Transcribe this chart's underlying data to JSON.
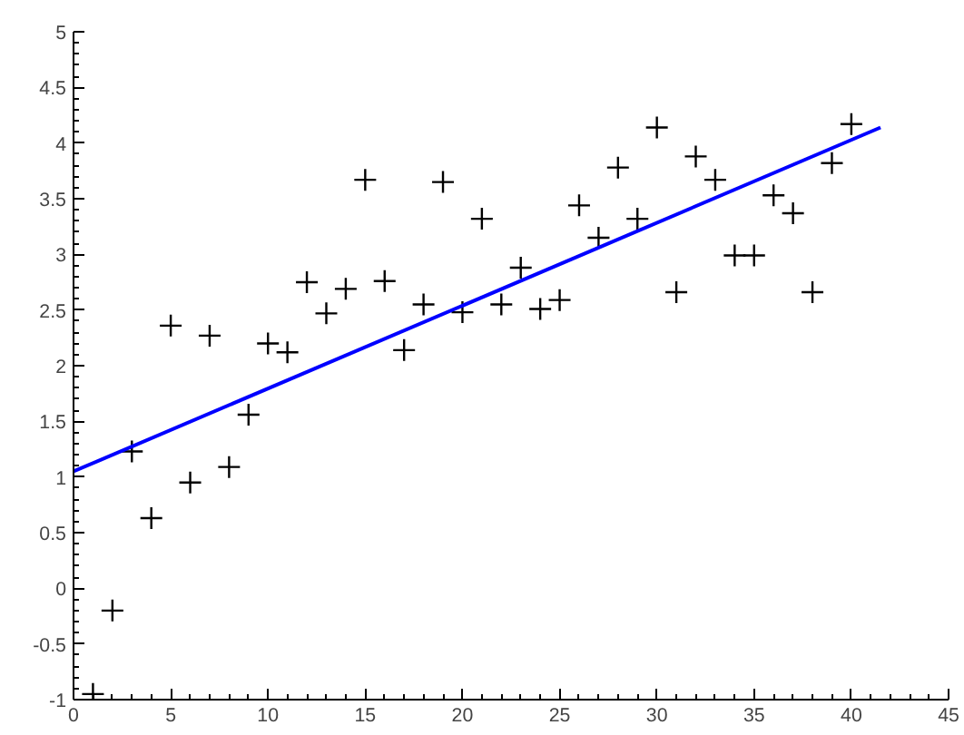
{
  "chart_data": {
    "type": "scatter",
    "grid": false,
    "xlim": [
      0,
      45
    ],
    "xticks": [
      0,
      5,
      10,
      15,
      20,
      25,
      30,
      35,
      40,
      45
    ],
    "ylim": [
      -1,
      5
    ],
    "yticks": [
      -1,
      -0.5,
      0,
      0.5,
      1,
      1.5,
      2,
      2.5,
      3,
      3.5,
      4,
      4.5,
      5
    ],
    "series": [
      {
        "marker": "cross",
        "color": "#000000",
        "x": [
          1,
          2,
          3,
          4,
          5,
          6,
          7,
          8,
          9,
          10,
          11,
          12,
          13,
          14,
          15,
          16,
          17,
          18,
          19,
          20,
          21,
          22,
          23,
          24,
          25,
          26,
          27,
          28,
          29,
          30,
          31,
          32,
          33,
          34,
          35,
          36,
          37,
          38,
          39,
          40
        ],
        "values": [
          -0.95,
          -0.2,
          1.23,
          0.63,
          2.36,
          0.95,
          2.27,
          1.09,
          1.56,
          2.2,
          2.12,
          2.75,
          2.47,
          2.69,
          3.67,
          2.76,
          2.14,
          2.55,
          3.65,
          2.48,
          3.32,
          2.55,
          2.88,
          2.51,
          2.59,
          3.44,
          3.15,
          3.78,
          3.32,
          4.14,
          2.66,
          3.88,
          3.67,
          2.99,
          2.99,
          3.53,
          3.37,
          2.66,
          3.82,
          4.17
        ]
      },
      {
        "type": "line",
        "color": "#0000ff",
        "line_style": "solid",
        "x": [
          0,
          41.5
        ],
        "values": [
          1.05,
          4.14
        ]
      }
    ]
  }
}
